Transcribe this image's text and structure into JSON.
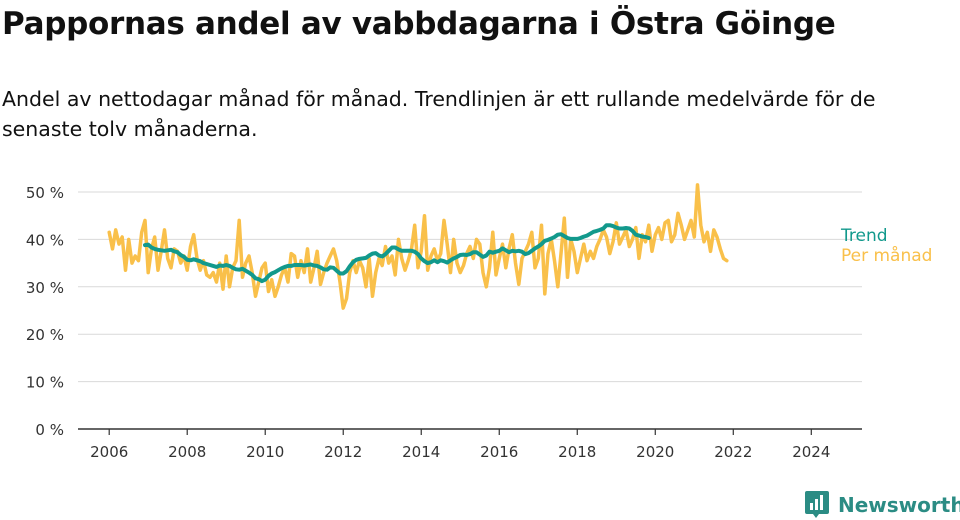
{
  "title": "Pappornas andel av vabbdagarna i Östra Göinge",
  "subtitle": "Andel av nettodagar månad för månad. Trendlinjen är ett rullande medelvärde för de senaste tolv månaderna.",
  "brand": {
    "name": "Newsworthy",
    "color": "#2b8c84"
  },
  "chart_data": {
    "type": "line",
    "y_unit": "%",
    "ylim": [
      0,
      50
    ],
    "y_ticks": [
      "0 %",
      "10 %",
      "20 %",
      "30 %",
      "40 %",
      "50 %"
    ],
    "y_tick_values": [
      0,
      10,
      20,
      30,
      40,
      50
    ],
    "x_ticks": [
      "2006",
      "2008",
      "2010",
      "2012",
      "2014",
      "2016",
      "2018",
      "2020",
      "2022",
      "2024"
    ],
    "x_tick_values": [
      2006,
      2008,
      2010,
      2012,
      2014,
      2016,
      2018,
      2020,
      2022,
      2024
    ],
    "xlim": [
      2005.2,
      2025.3
    ],
    "grid": "horizontal",
    "series": [
      {
        "name": "Per månad",
        "color": "#f9c04a",
        "x_start": 2006.0,
        "step": 0.0833333,
        "values": [
          41.5,
          38.0,
          42.0,
          39.0,
          40.5,
          33.5,
          40.0,
          35.0,
          36.5,
          35.5,
          41.5,
          44.0,
          33.0,
          38.0,
          40.5,
          33.5,
          37.5,
          42.0,
          36.0,
          34.0,
          38.0,
          37.5,
          35.0,
          36.5,
          33.5,
          38.5,
          41.0,
          36.0,
          33.5,
          35.5,
          32.5,
          32.0,
          33.0,
          31.0,
          35.0,
          29.5,
          36.5,
          30.0,
          34.0,
          35.5,
          44.0,
          32.0,
          35.0,
          36.5,
          33.0,
          28.0,
          31.0,
          34.0,
          35.0,
          29.0,
          31.5,
          28.0,
          30.0,
          32.5,
          34.0,
          31.0,
          37.0,
          36.5,
          32.0,
          35.5,
          33.0,
          38.0,
          31.0,
          34.0,
          37.5,
          30.5,
          33.0,
          35.0,
          36.5,
          38.0,
          35.5,
          31.0,
          25.5,
          27.5,
          33.0,
          35.5,
          33.0,
          35.5,
          34.0,
          30.0,
          36.0,
          28.0,
          33.0,
          36.0,
          34.5,
          38.5,
          35.0,
          36.5,
          32.5,
          40.0,
          36.0,
          33.5,
          35.5,
          38.0,
          43.0,
          34.0,
          37.5,
          45.0,
          33.5,
          36.5,
          38.0,
          35.5,
          37.0,
          44.0,
          39.0,
          33.0,
          40.0,
          35.0,
          33.0,
          34.5,
          37.0,
          38.5,
          36.0,
          40.0,
          39.0,
          33.0,
          30.0,
          34.0,
          41.5,
          32.5,
          36.0,
          39.0,
          34.0,
          38.0,
          41.0,
          35.0,
          30.5,
          36.0,
          37.5,
          39.0,
          41.5,
          34.0,
          36.0,
          43.0,
          28.5,
          37.0,
          40.0,
          35.5,
          30.0,
          37.0,
          44.5,
          32.0,
          40.0,
          37.5,
          33.0,
          36.0,
          39.0,
          35.5,
          37.5,
          36.0,
          38.5,
          40.0,
          42.0,
          40.5,
          37.0,
          39.5,
          43.5,
          39.0,
          40.5,
          42.0,
          38.5,
          40.0,
          42.5,
          36.0,
          41.0,
          39.5,
          43.0,
          37.5,
          41.0,
          42.5,
          40.0,
          43.5,
          44.0,
          39.5,
          41.0,
          45.5,
          43.0,
          40.0,
          42.0,
          44.0,
          40.5,
          51.5,
          43.0,
          39.5,
          41.5,
          37.5,
          42.0,
          40.5,
          38.0,
          36.0,
          35.5
        ]
      },
      {
        "name": "Trend",
        "color": "#12998c",
        "x_start": 2006.9167,
        "step": 0.0833333,
        "values": [
          38.8,
          38.9,
          38.3,
          38.0,
          37.8,
          37.7,
          37.6,
          37.7,
          37.8,
          37.5,
          37.3,
          36.7,
          36.3,
          35.7,
          35.6,
          35.8,
          35.6,
          35.4,
          35.0,
          34.8,
          34.6,
          34.4,
          34.2,
          34.5,
          34.4,
          34.6,
          34.4,
          34.0,
          33.7,
          33.6,
          33.8,
          33.4,
          33.0,
          32.5,
          31.8,
          31.6,
          31.2,
          31.5,
          32.3,
          32.8,
          33.1,
          33.5,
          33.9,
          34.2,
          34.4,
          34.4,
          34.6,
          34.6,
          34.6,
          34.5,
          34.6,
          34.7,
          34.5,
          34.4,
          34.1,
          33.7,
          33.6,
          34.1,
          34.0,
          33.4,
          32.8,
          32.8,
          33.3,
          34.3,
          35.2,
          35.7,
          35.9,
          36.0,
          36.1,
          36.6,
          37.0,
          37.1,
          36.6,
          36.4,
          36.9,
          37.6,
          38.3,
          38.3,
          37.9,
          37.6,
          37.6,
          37.6,
          37.6,
          37.4,
          36.9,
          36.0,
          35.4,
          35.0,
          35.2,
          35.6,
          35.2,
          35.6,
          35.4,
          35.1,
          35.6,
          36.0,
          36.3,
          36.7,
          36.8,
          36.7,
          36.9,
          37.3,
          37.3,
          36.8,
          36.3,
          36.6,
          37.4,
          37.2,
          37.4,
          37.6,
          38.1,
          37.7,
          37.3,
          37.6,
          37.5,
          37.6,
          37.4,
          36.9,
          37.1,
          37.6,
          38.1,
          38.5,
          39.0,
          39.7,
          39.9,
          40.2,
          40.5,
          41.0,
          41.1,
          40.7,
          40.3,
          40.1,
          40.1,
          40.1,
          40.3,
          40.6,
          40.8,
          41.2,
          41.6,
          41.8,
          42.0,
          42.3,
          43.0,
          43.0,
          42.8,
          42.5,
          42.3,
          42.3,
          42.4,
          42.3,
          41.8,
          41.0,
          40.8,
          40.6,
          40.5,
          40.3
        ]
      }
    ]
  }
}
